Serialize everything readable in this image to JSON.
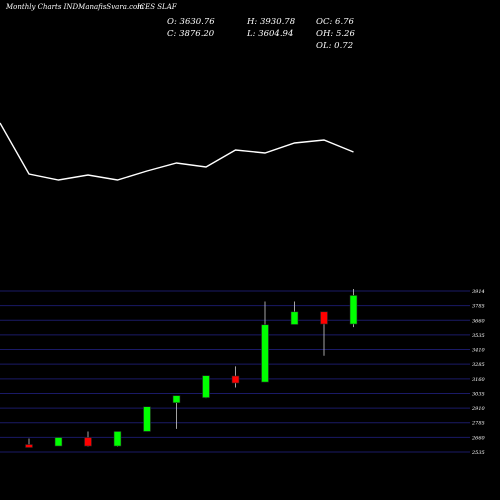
{
  "header": {
    "source": "Monthly Charts INDManafisSvara.com",
    "symbol": "ICES SLAF"
  },
  "ohlc": {
    "open": "O: 3630.76",
    "high": "H: 3930.78",
    "oc": "OC: 6.76",
    "close": "C: 3876.20",
    "low": "L: 3604.94",
    "oh": "OH: 5.26",
    "ol": "OL: 0.72"
  },
  "colors": {
    "background": "#000000",
    "up": "#00ff00",
    "down": "#ff0000",
    "line": "#ffffff",
    "grid": "#1a1a66"
  },
  "chart_data": {
    "type": "candlestick",
    "y_ticks": [
      "3914",
      "3785",
      "3660",
      "3535",
      "3410",
      "3285",
      "3160",
      "3035",
      "2910",
      "2785",
      "2660",
      "2535"
    ],
    "ylim": [
      2535,
      3914
    ],
    "candles": [
      {
        "open": 2599,
        "high": 2651,
        "low": 2577,
        "close": 2577,
        "dir": "down"
      },
      {
        "open": 2586,
        "high": 2659,
        "low": 2586,
        "close": 2659,
        "dir": "up"
      },
      {
        "open": 2659,
        "high": 2711,
        "low": 2581,
        "close": 2586,
        "dir": "down"
      },
      {
        "open": 2586,
        "high": 2711,
        "low": 2581,
        "close": 2711,
        "dir": "up"
      },
      {
        "open": 2711,
        "high": 2923,
        "low": 2711,
        "close": 2923,
        "dir": "up"
      },
      {
        "open": 2957,
        "high": 3018,
        "low": 2733,
        "close": 3018,
        "dir": "up"
      },
      {
        "open": 3001,
        "high": 3189,
        "low": 2996,
        "close": 3189,
        "dir": "up"
      },
      {
        "open": 3186,
        "high": 3268,
        "low": 3087,
        "close": 3126,
        "dir": "down"
      },
      {
        "open": 3134,
        "high": 3824,
        "low": 3134,
        "close": 3625,
        "dir": "up"
      },
      {
        "open": 3627,
        "high": 3824,
        "low": 3627,
        "close": 3736,
        "dir": "up"
      },
      {
        "open": 3736,
        "high": 3736,
        "low": 3359,
        "close": 3631,
        "dir": "down"
      },
      {
        "open": 3631,
        "high": 3931,
        "low": 3605,
        "close": 3876,
        "dir": "up"
      }
    ],
    "line_overlay": [
      174,
      180,
      175,
      180,
      171,
      163,
      167,
      150,
      153,
      143,
      140,
      152
    ]
  }
}
